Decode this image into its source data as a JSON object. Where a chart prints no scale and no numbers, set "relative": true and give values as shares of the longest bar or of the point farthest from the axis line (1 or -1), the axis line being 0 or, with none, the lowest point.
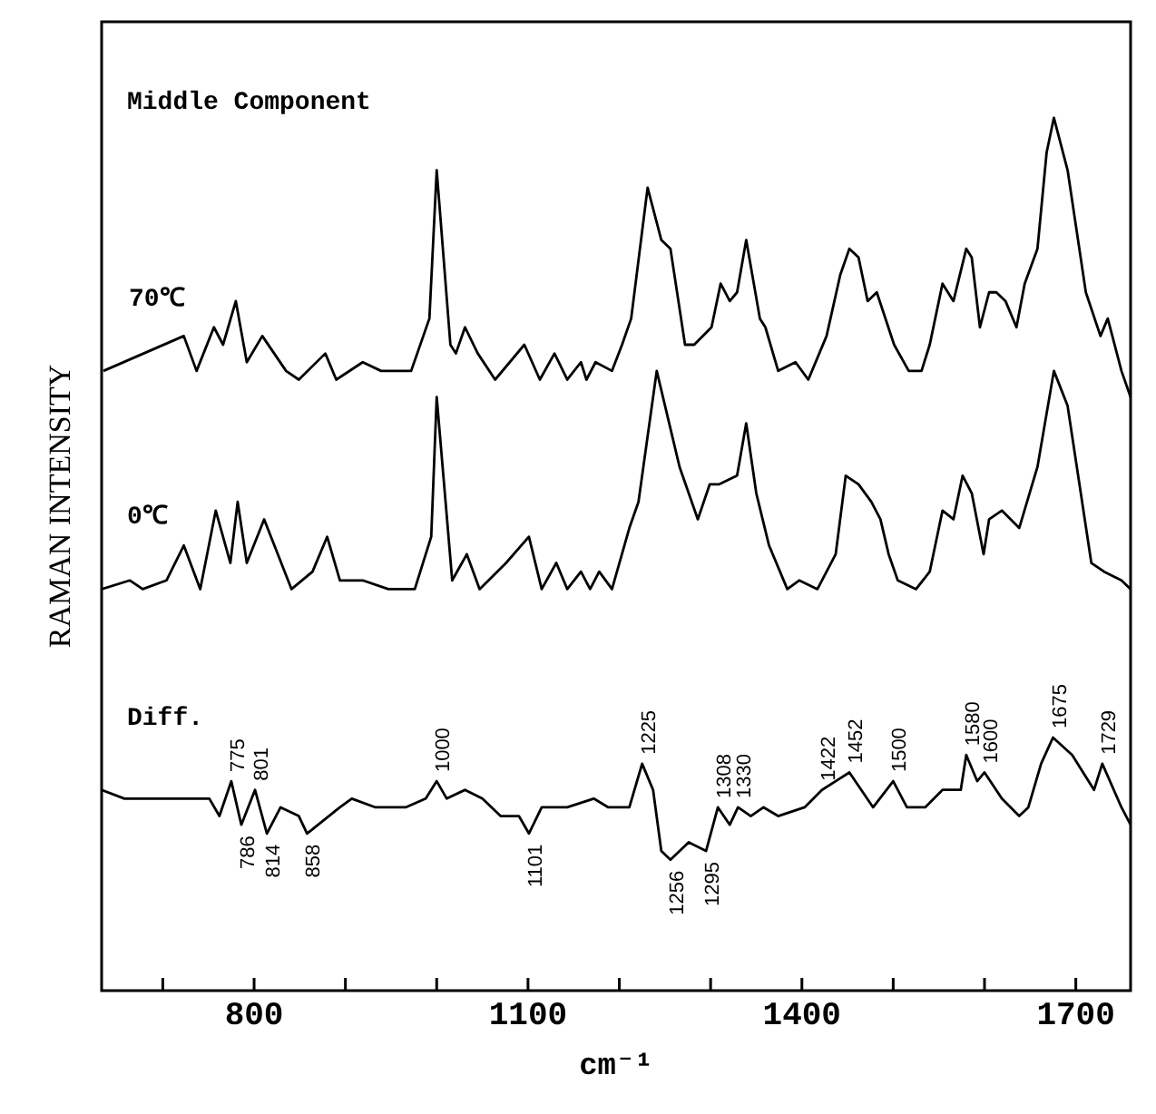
{
  "chart_data": {
    "type": "line",
    "relative": true,
    "xlabel": "cm⁻¹",
    "ylabel": "RAMAN INTENSITY",
    "legend": false,
    "grid": false,
    "marker": "none",
    "line_style": "solid",
    "xlim": [
      633,
      1760
    ],
    "xticks": [
      {
        "value": 700,
        "label": null
      },
      800,
      {
        "value": 900,
        "label": null
      },
      {
        "value": 1000,
        "label": null
      },
      1100,
      {
        "value": 1200,
        "label": null
      },
      {
        "value": 1300,
        "label": null
      },
      1400,
      {
        "value": 1500,
        "label": null
      },
      {
        "value": 1600,
        "label": null
      },
      1700
    ],
    "annotations": [
      "Middle Component",
      {
        "text": "775",
        "x": 775,
        "y": 0.24
      },
      {
        "text": "786",
        "x": 786,
        "y": 0.19
      },
      {
        "text": "801",
        "x": 801,
        "y": 0.23
      },
      {
        "text": "814",
        "x": 814,
        "y": 0.18
      },
      {
        "text": "858",
        "x": 858,
        "y": 0.18
      },
      {
        "text": "1000",
        "x": 1000,
        "y": 0.24
      },
      {
        "text": "1101",
        "x": 1101,
        "y": 0.18
      },
      {
        "text": "1225",
        "x": 1225,
        "y": 0.26
      },
      {
        "text": "1256",
        "x": 1256,
        "y": 0.15
      },
      {
        "text": "1295",
        "x": 1295,
        "y": 0.16
      },
      {
        "text": "1308",
        "x": 1308,
        "y": 0.21
      },
      {
        "text": "1330",
        "x": 1330,
        "y": 0.21
      },
      {
        "text": "1422",
        "x": 1422,
        "y": 0.23
      },
      {
        "text": "1452",
        "x": 1452,
        "y": 0.25
      },
      {
        "text": "1500",
        "x": 1500,
        "y": 0.24
      },
      {
        "text": "1580",
        "x": 1580,
        "y": 0.27
      },
      {
        "text": "1600",
        "x": 1600,
        "y": 0.25
      },
      {
        "text": "1675",
        "x": 1675,
        "y": 0.29
      },
      {
        "text": "1729",
        "x": 1729,
        "y": 0.26
      }
    ],
    "series": [
      {
        "name": "70℃",
        "color": "#000000",
        "x": [
          635,
          723,
          737,
          756,
          766,
          780,
          792,
          809,
          835,
          849,
          878,
          890,
          919,
          939,
          972,
          992,
          1000,
          1015,
          1021,
          1031,
          1045,
          1064,
          1096,
          1113,
          1129,
          1143,
          1158,
          1164,
          1174,
          1192,
          1203,
          1213,
          1231,
          1246,
          1256,
          1272,
          1282,
          1301,
          1311,
          1321,
          1329,
          1339,
          1354,
          1360,
          1374,
          1393,
          1407,
          1427,
          1442,
          1452,
          1462,
          1472,
          1482,
          1501,
          1517,
          1531,
          1540,
          1554,
          1566,
          1580,
          1586,
          1595,
          1605,
          1613,
          1623,
          1635,
          1644,
          1658,
          1668,
          1676,
          1691,
          1711,
          1727,
          1735,
          1750,
          1760
        ],
        "values": [
          0.71,
          0.75,
          0.71,
          0.76,
          0.74,
          0.79,
          0.72,
          0.75,
          0.71,
          0.7,
          0.73,
          0.7,
          0.72,
          0.71,
          0.71,
          0.77,
          0.94,
          0.74,
          0.73,
          0.76,
          0.73,
          0.7,
          0.74,
          0.7,
          0.73,
          0.7,
          0.72,
          0.7,
          0.72,
          0.71,
          0.74,
          0.77,
          0.92,
          0.86,
          0.85,
          0.74,
          0.74,
          0.76,
          0.81,
          0.79,
          0.8,
          0.86,
          0.77,
          0.76,
          0.71,
          0.72,
          0.7,
          0.75,
          0.82,
          0.85,
          0.84,
          0.79,
          0.8,
          0.74,
          0.71,
          0.71,
          0.74,
          0.81,
          0.79,
          0.85,
          0.84,
          0.76,
          0.8,
          0.8,
          0.79,
          0.76,
          0.81,
          0.85,
          0.96,
          1.0,
          0.94,
          0.8,
          0.75,
          0.77,
          0.71,
          0.68
        ]
      },
      {
        "name": "0℃",
        "color": "#000000",
        "x": [
          633,
          664,
          678,
          704,
          723,
          741,
          758,
          774,
          782,
          792,
          811,
          841,
          864,
          880,
          894,
          919,
          947,
          976,
          994,
          1000,
          1017,
          1033,
          1047,
          1076,
          1101,
          1115,
          1131,
          1143,
          1158,
          1168,
          1178,
          1192,
          1211,
          1221,
          1241,
          1266,
          1286,
          1299,
          1309,
          1329,
          1339,
          1350,
          1364,
          1384,
          1397,
          1417,
          1437,
          1448,
          1462,
          1476,
          1486,
          1495,
          1505,
          1525,
          1540,
          1554,
          1566,
          1576,
          1586,
          1599,
          1605,
          1619,
          1638,
          1658,
          1676,
          1691,
          1717,
          1731,
          1750,
          1760
        ],
        "values": [
          0.46,
          0.47,
          0.46,
          0.47,
          0.51,
          0.46,
          0.55,
          0.49,
          0.56,
          0.49,
          0.54,
          0.46,
          0.48,
          0.52,
          0.47,
          0.47,
          0.46,
          0.46,
          0.52,
          0.68,
          0.47,
          0.5,
          0.46,
          0.49,
          0.52,
          0.46,
          0.49,
          0.46,
          0.48,
          0.46,
          0.48,
          0.46,
          0.53,
          0.56,
          0.71,
          0.6,
          0.54,
          0.58,
          0.58,
          0.59,
          0.65,
          0.57,
          0.51,
          0.46,
          0.47,
          0.46,
          0.5,
          0.59,
          0.58,
          0.56,
          0.54,
          0.5,
          0.47,
          0.46,
          0.48,
          0.55,
          0.54,
          0.59,
          0.57,
          0.5,
          0.54,
          0.55,
          0.53,
          0.6,
          0.71,
          0.67,
          0.49,
          0.48,
          0.47,
          0.46
        ]
      },
      {
        "name": "Diff.",
        "color": "#000000",
        "x": [
          633,
          658,
          684,
          717,
          751,
          762,
          775,
          786,
          801,
          814,
          829,
          849,
          858,
          894,
          907,
          933,
          966,
          988,
          1000,
          1011,
          1031,
          1050,
          1070,
          1090,
          1101,
          1115,
          1143,
          1172,
          1188,
          1211,
          1225,
          1237,
          1246,
          1256,
          1276,
          1295,
          1308,
          1321,
          1330,
          1344,
          1358,
          1374,
          1403,
          1422,
          1437,
          1452,
          1478,
          1500,
          1515,
          1535,
          1554,
          1574,
          1580,
          1592,
          1600,
          1619,
          1638,
          1648,
          1662,
          1675,
          1696,
          1720,
          1729,
          1750,
          1760
        ],
        "values": [
          0.23,
          0.22,
          0.22,
          0.22,
          0.22,
          0.2,
          0.24,
          0.19,
          0.23,
          0.18,
          0.21,
          0.2,
          0.18,
          0.21,
          0.22,
          0.21,
          0.21,
          0.22,
          0.24,
          0.22,
          0.23,
          0.22,
          0.2,
          0.2,
          0.18,
          0.21,
          0.21,
          0.22,
          0.21,
          0.21,
          0.26,
          0.23,
          0.16,
          0.15,
          0.17,
          0.16,
          0.21,
          0.19,
          0.21,
          0.2,
          0.21,
          0.2,
          0.21,
          0.23,
          0.24,
          0.25,
          0.21,
          0.24,
          0.21,
          0.21,
          0.23,
          0.23,
          0.27,
          0.24,
          0.25,
          0.22,
          0.2,
          0.21,
          0.26,
          0.29,
          0.27,
          0.23,
          0.26,
          0.21,
          0.19
        ]
      }
    ]
  }
}
